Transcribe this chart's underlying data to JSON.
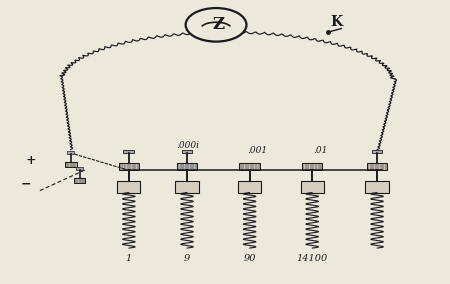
{
  "bg_color": "#ede8dc",
  "line_color": "#1a1a1a",
  "coil_color": "#222222",
  "figsize": [
    4.5,
    2.84
  ],
  "dpi": 100,
  "labels_bottom": [
    "1",
    "9",
    "90",
    "14100"
  ],
  "labels_top": [
    ".000i",
    ".001",
    ".01"
  ],
  "label_plus": "+",
  "label_minus": "−",
  "label_K": "K",
  "label_Z": "Z"
}
